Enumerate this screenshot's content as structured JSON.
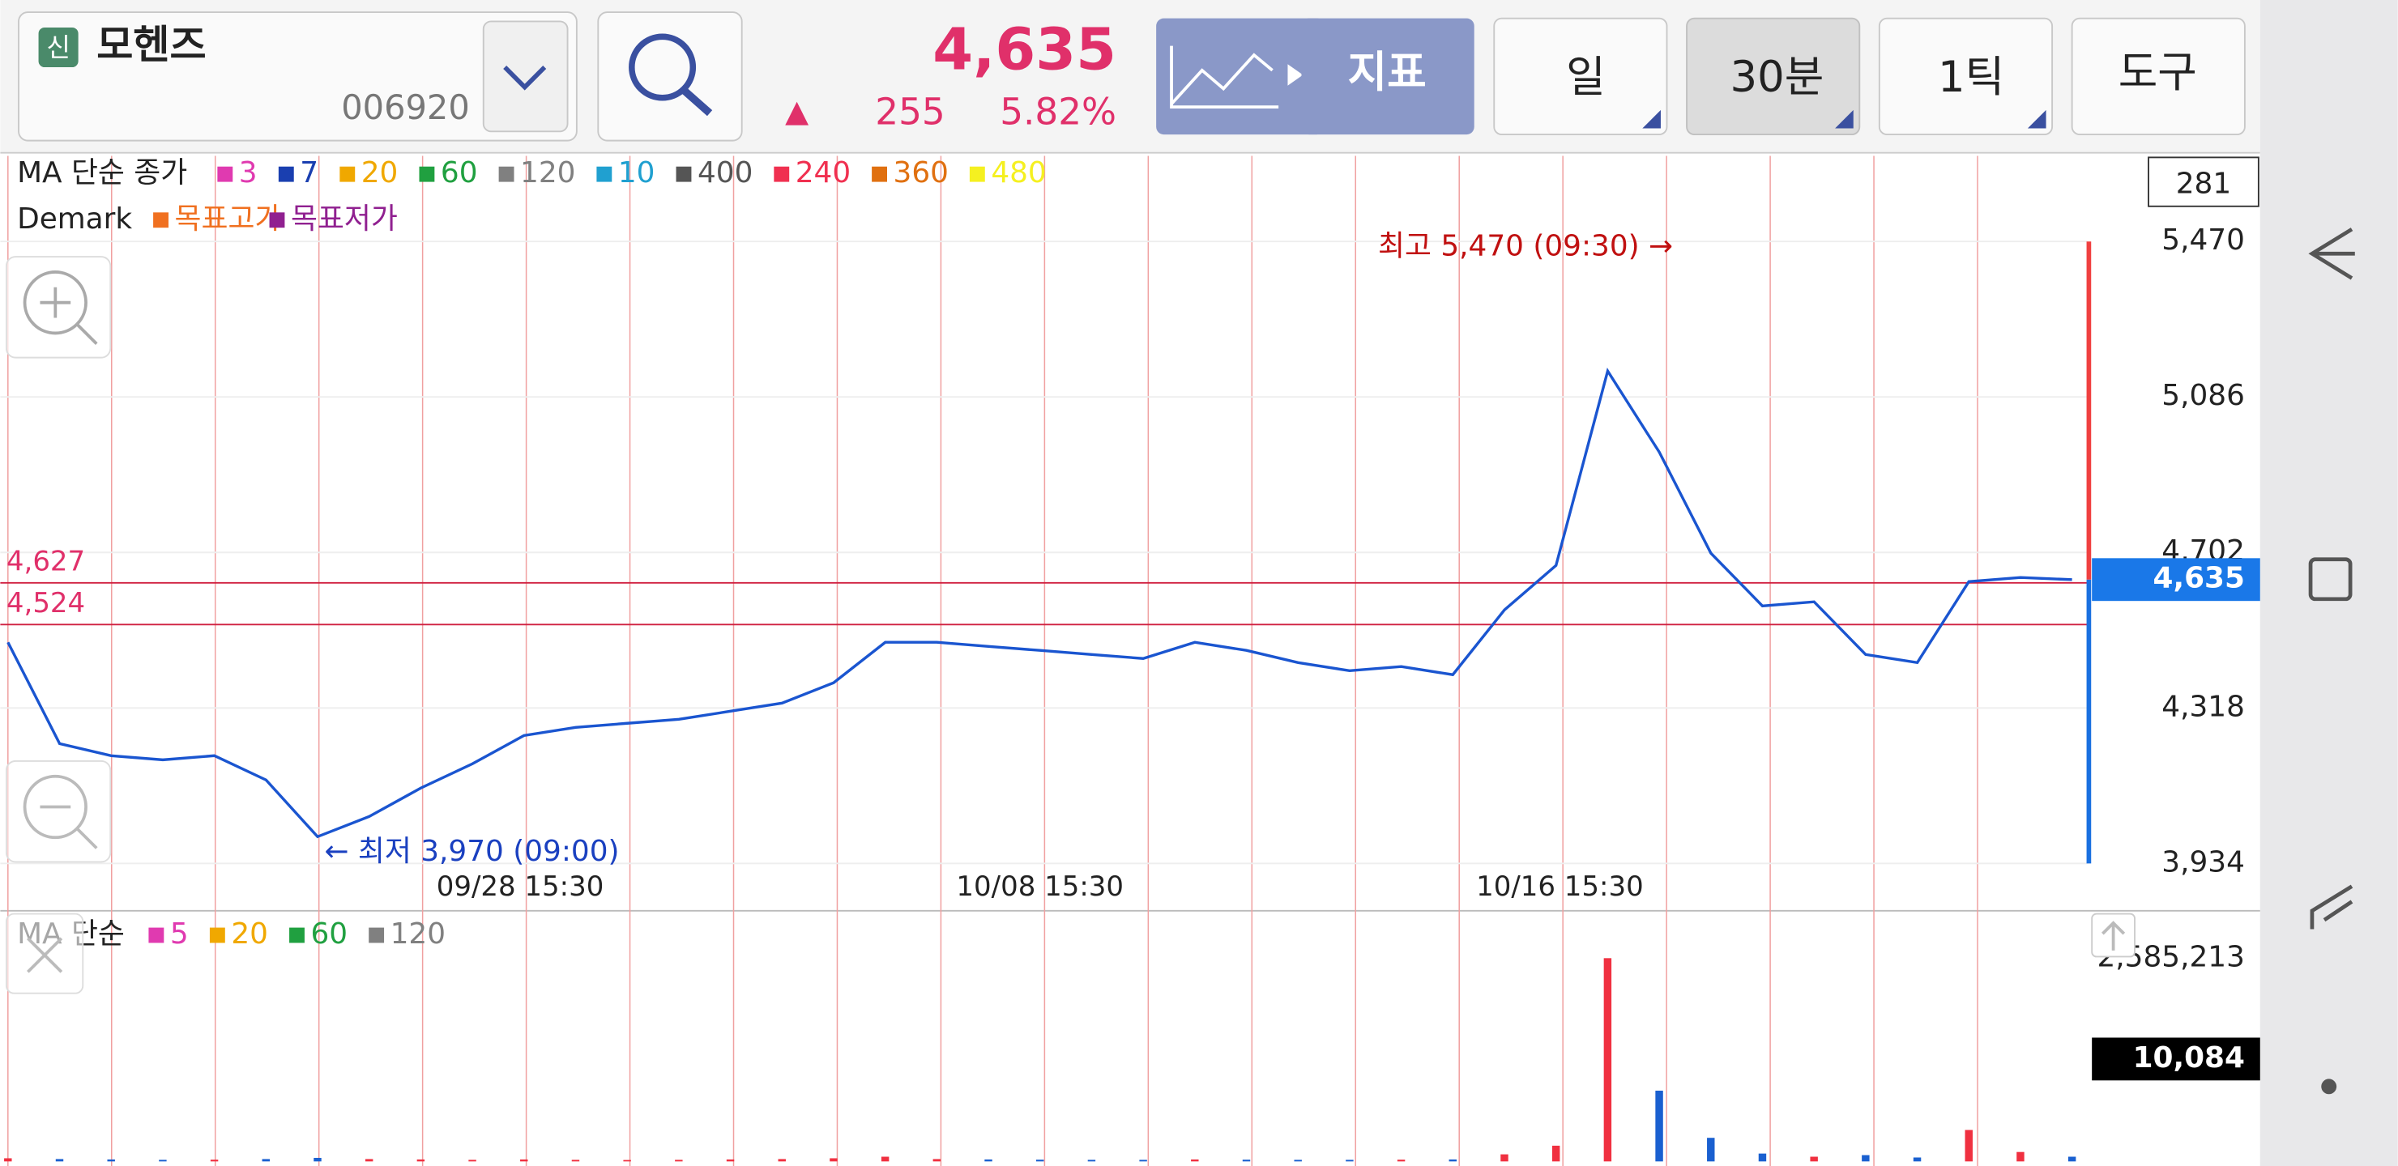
{
  "header": {
    "badge": "신",
    "name": "모헨즈",
    "code": "006920",
    "price": "4,635",
    "change_mark": "▲",
    "change": "255",
    "change_rate": "5.82%"
  },
  "toolbar": {
    "indicator": "지표",
    "period_day": "일",
    "period_min": "30분",
    "tick": "1틱",
    "tools": "도구"
  },
  "price_chart": {
    "type": "line",
    "legend_title": "MA 단순 종가",
    "ma_legend": [
      {
        "name": "3",
        "color": "#e03ab0"
      },
      {
        "name": "7",
        "color": "#1a3fb0"
      },
      {
        "name": "20",
        "color": "#f0a800"
      },
      {
        "name": "60",
        "color": "#20a040"
      },
      {
        "name": "120",
        "color": "#808080"
      },
      {
        "name": "10",
        "color": "#20a0d0"
      },
      {
        "name": "400",
        "color": "#555555"
      },
      {
        "name": "240",
        "color": "#f03050"
      },
      {
        "name": "360",
        "color": "#e07010"
      },
      {
        "name": "480",
        "color": "#f5f020"
      }
    ],
    "demark_title": "Demark",
    "demark_legend": [
      {
        "name": "목표고가",
        "color": "#f07020"
      },
      {
        "name": "목표저가",
        "color": "#902090"
      }
    ],
    "count_label": "281",
    "high_note": "최고 5,470 (09:30) →",
    "low_note": "← 최저 3,970 (09:00)",
    "ylim": [
      3934,
      5470
    ],
    "yticks": [
      {
        "value": 5470,
        "label": "5,470"
      },
      {
        "value": 5086,
        "label": "5,086"
      },
      {
        "value": 4702,
        "label": "4,702"
      },
      {
        "value": 4318,
        "label": "4,318"
      },
      {
        "value": 3934,
        "label": "3,934"
      }
    ],
    "levels": [
      {
        "value": 4627,
        "label": "4,627"
      },
      {
        "value": 4524,
        "label": "4,524"
      }
    ],
    "current": {
      "value": 4635,
      "label": "4,635"
    },
    "x_labels": [
      "09/28 15:30",
      "10/08 15:30",
      "10/16 15:30"
    ],
    "color": "#1a55d0",
    "close": [
      4480,
      4230,
      4200,
      4190,
      4200,
      4140,
      4000,
      4050,
      4120,
      4180,
      4250,
      4270,
      4280,
      4290,
      4310,
      4330,
      4380,
      4480,
      4480,
      4470,
      4460,
      4450,
      4440,
      4480,
      4460,
      4430,
      4410,
      4420,
      4400,
      4560,
      4670,
      5150,
      4950,
      4700,
      4570,
      4580,
      4450,
      4430,
      4630,
      4640,
      4635
    ]
  },
  "volume_chart": {
    "legend_title": "MA 단순",
    "ma_legend": [
      {
        "name": "5",
        "color": "#e03ab0"
      },
      {
        "name": "20",
        "color": "#f0a800"
      },
      {
        "name": "60",
        "color": "#20a040"
      },
      {
        "name": "120",
        "color": "#808080"
      }
    ],
    "ylim": [
      0,
      2585213
    ],
    "yticks": [
      {
        "value": 2585213,
        "label": "2,585,213"
      }
    ],
    "current": "10,084",
    "values": [
      40000,
      30000,
      25000,
      20000,
      22000,
      30000,
      45000,
      30000,
      25000,
      20000,
      25000,
      20000,
      18000,
      20000,
      25000,
      30000,
      40000,
      60000,
      30000,
      25000,
      22000,
      20000,
      20000,
      25000,
      22000,
      20000,
      20000,
      22000,
      25000,
      90000,
      200000,
      2585213,
      900000,
      300000,
      100000,
      60000,
      80000,
      50000,
      400000,
      120000,
      60000
    ]
  }
}
